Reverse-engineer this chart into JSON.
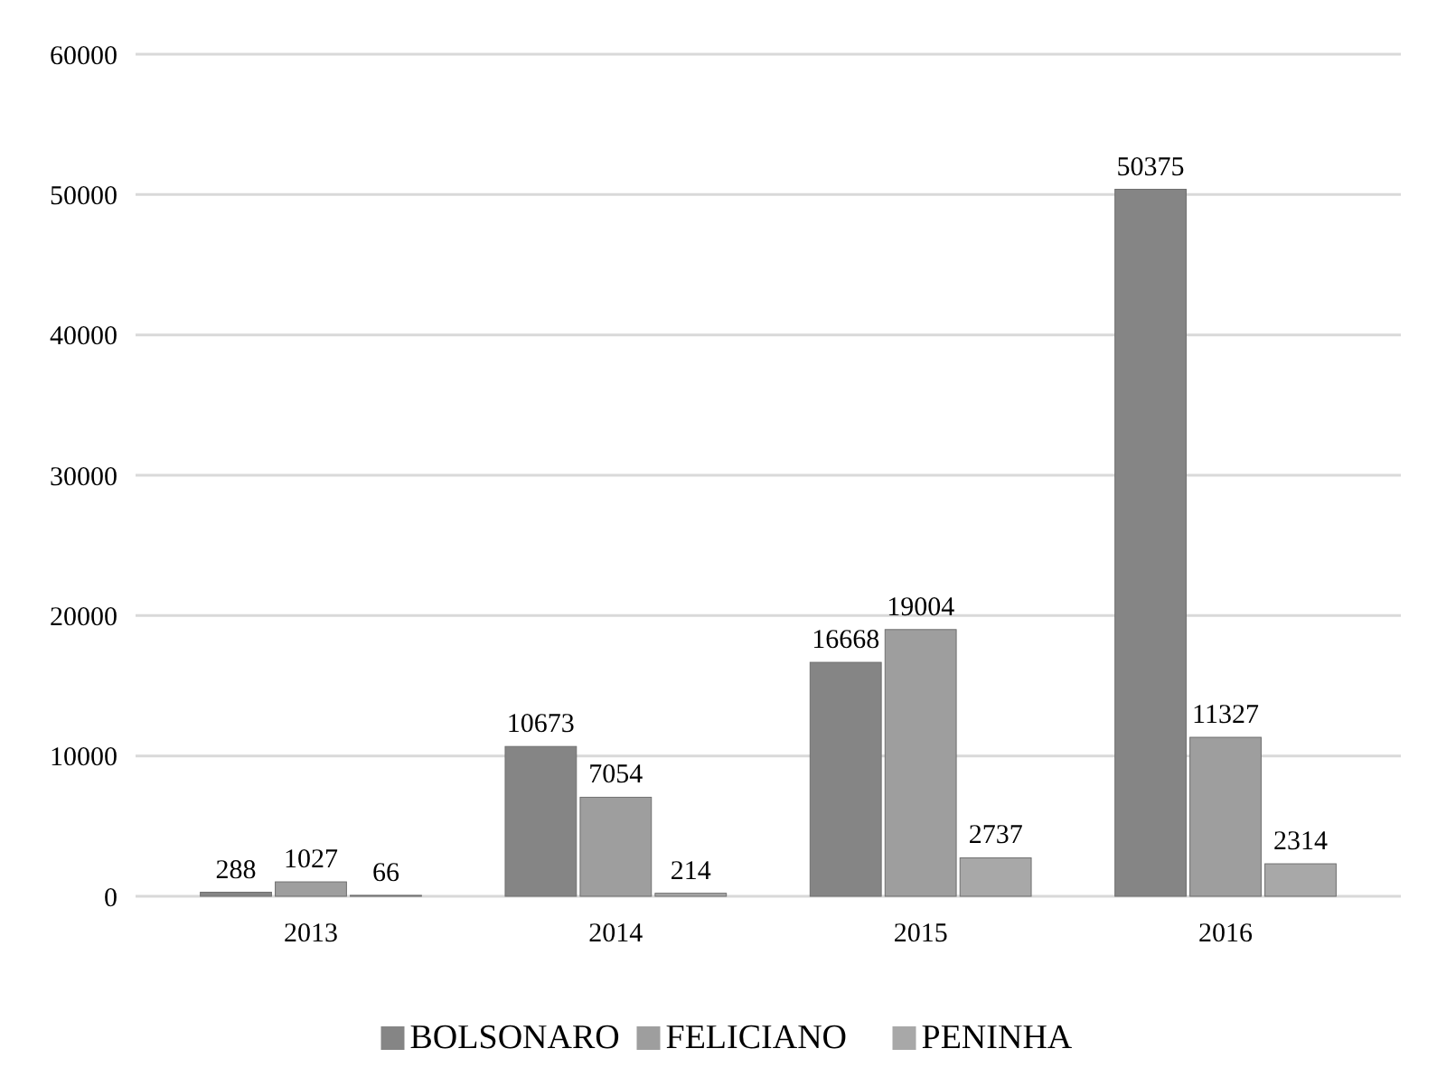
{
  "chart_data": {
    "type": "bar",
    "categories": [
      "2013",
      "2014",
      "2015",
      "2016"
    ],
    "series": [
      {
        "name": "BOLSONARO",
        "color": "#858585",
        "values": [
          288,
          10673,
          16668,
          50375
        ]
      },
      {
        "name": "FELICIANO",
        "color": "#9e9e9e",
        "values": [
          1027,
          7054,
          19004,
          11327
        ]
      },
      {
        "name": "PENINHA",
        "color": "#a8a8a8",
        "values": [
          66,
          214,
          2737,
          2314
        ]
      }
    ],
    "ylim": [
      0,
      60000
    ],
    "yticks": [
      0,
      10000,
      20000,
      30000,
      40000,
      50000,
      60000
    ],
    "grid": "y",
    "legend": "bottom",
    "data_labels": true
  }
}
